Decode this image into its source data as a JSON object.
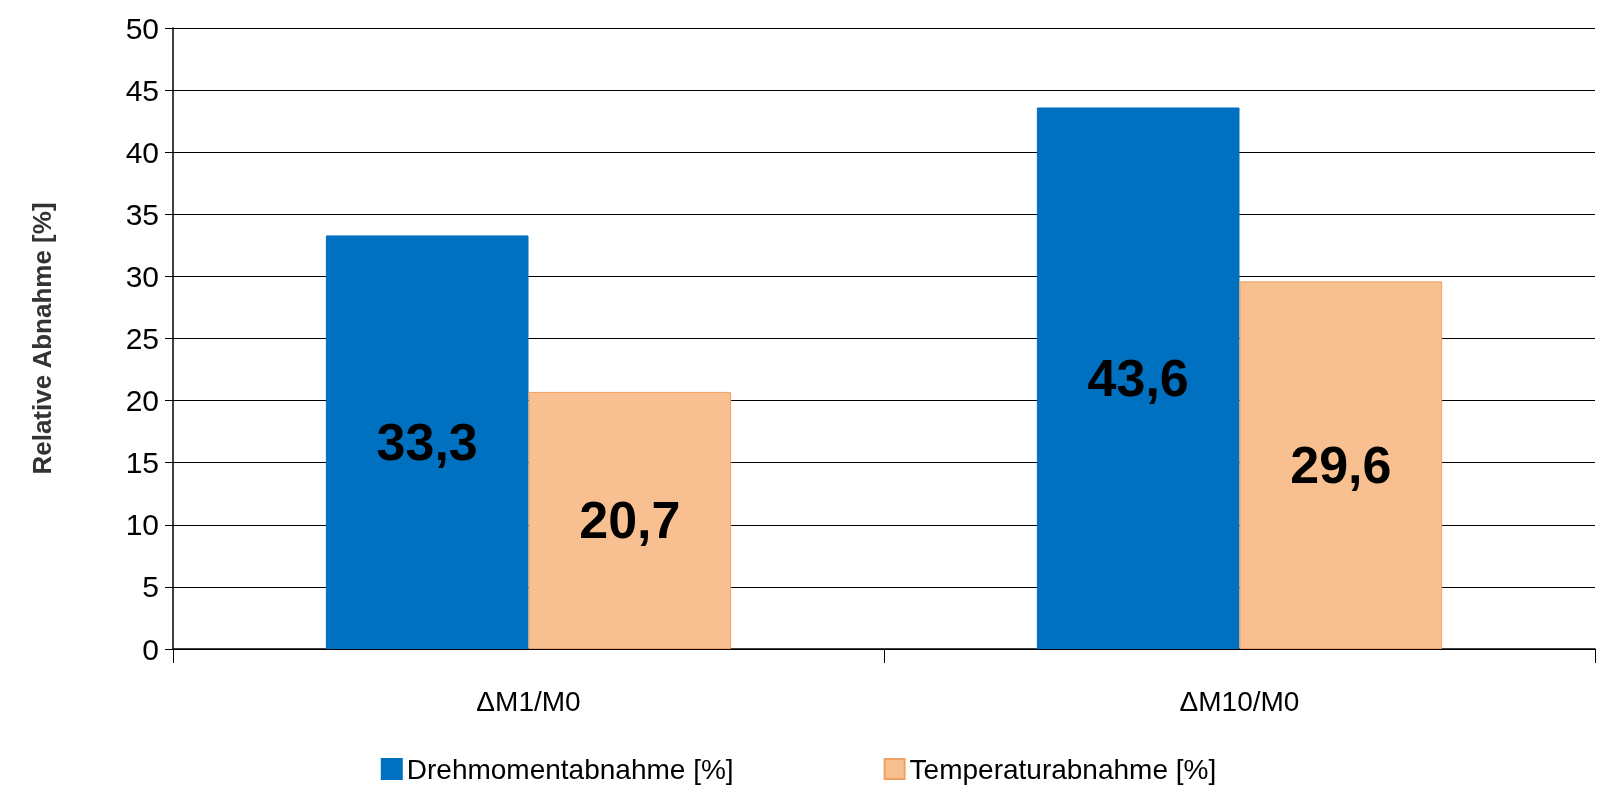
{
  "chart_data": {
    "type": "bar",
    "ylabel": "Relative Abnahme [%]",
    "categories": [
      "ΔM1/M0",
      "ΔM10/M0"
    ],
    "series": [
      {
        "name": "Drehmomentabnahme [%]",
        "color": "#0070c0",
        "values": [
          33.3,
          43.6
        ],
        "value_labels": [
          "33,3",
          "43,6"
        ]
      },
      {
        "name": "Temperaturabnahme [%]",
        "color": "#f8c091",
        "values": [
          20.7,
          29.6
        ],
        "value_labels": [
          "20,7",
          "29,6"
        ]
      }
    ],
    "ylim": [
      0,
      50
    ],
    "yticks": [
      0,
      5,
      10,
      15,
      20,
      25,
      30,
      35,
      40,
      45,
      50
    ],
    "grid": "y",
    "legend": "bottom"
  }
}
